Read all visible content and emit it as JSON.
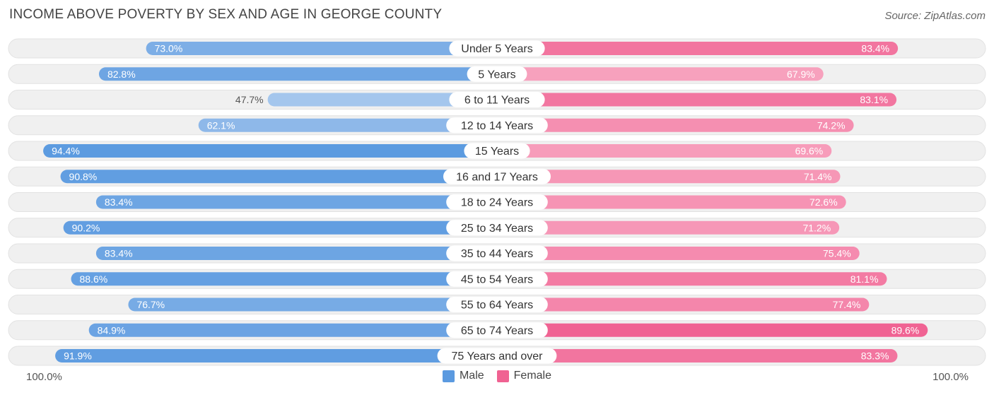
{
  "title": "INCOME ABOVE POVERTY BY SEX AND AGE IN GEORGE COUNTY",
  "source": "Source: ZipAtlas.com",
  "colors": {
    "male_dark": "#5b9ae0",
    "male_light": "#a8c8ee",
    "female_dark": "#f06292",
    "female_light": "#f8a9c3",
    "row_bg": "#f0f0f0"
  },
  "chart_data": {
    "type": "bar",
    "orientation": "horizontal-diverging",
    "title": "INCOME ABOVE POVERTY BY SEX AND AGE IN GEORGE COUNTY",
    "categories": [
      "Under 5 Years",
      "5 Years",
      "6 to 11 Years",
      "12 to 14 Years",
      "15 Years",
      "16 and 17 Years",
      "18 to 24 Years",
      "25 to 34 Years",
      "35 to 44 Years",
      "45 to 54 Years",
      "55 to 64 Years",
      "65 to 74 Years",
      "75 Years and over"
    ],
    "series": [
      {
        "name": "Male",
        "values": [
          73.0,
          82.8,
          47.7,
          62.1,
          94.4,
          90.8,
          83.4,
          90.2,
          83.4,
          88.6,
          76.7,
          84.9,
          91.9
        ]
      },
      {
        "name": "Female",
        "values": [
          83.4,
          67.9,
          83.1,
          74.2,
          69.6,
          71.4,
          72.6,
          71.2,
          75.4,
          81.1,
          77.4,
          89.6,
          83.3
        ]
      }
    ],
    "value_labels": {
      "male": [
        "73.0%",
        "82.8%",
        "47.7%",
        "62.1%",
        "94.4%",
        "90.8%",
        "83.4%",
        "90.2%",
        "83.4%",
        "88.6%",
        "76.7%",
        "84.9%",
        "91.9%"
      ],
      "female": [
        "83.4%",
        "67.9%",
        "83.1%",
        "74.2%",
        "69.6%",
        "71.4%",
        "72.6%",
        "71.2%",
        "75.4%",
        "81.1%",
        "77.4%",
        "89.6%",
        "83.3%"
      ]
    },
    "xlim": [
      0,
      100
    ],
    "axis_left_label": "100.0%",
    "axis_right_label": "100.0%",
    "legend": [
      "Male",
      "Female"
    ],
    "legend_position": "bottom-center"
  }
}
